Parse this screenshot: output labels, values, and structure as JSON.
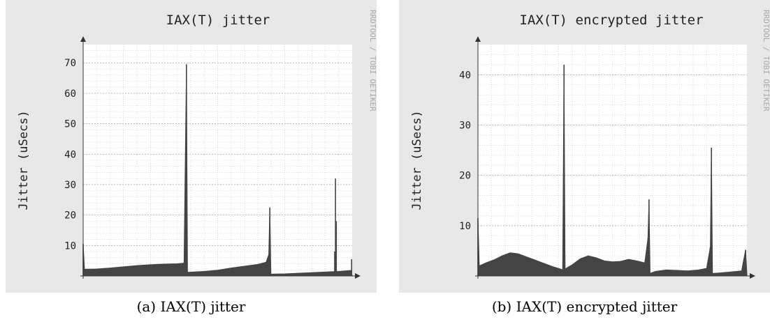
{
  "captions": [
    "(a) IAX(T) jitter",
    "(b) IAX(T) encrypted jitter"
  ],
  "watermark": "RRDTOOL / TOBI OETIKER",
  "colors": {
    "background": "#e8e8e8",
    "plot": "#ffffff",
    "grid": "#c8c8c8",
    "series": "#444444",
    "text": "#222222",
    "watermark": "#aaaaaa"
  },
  "chart_data": [
    {
      "type": "area",
      "title": "IAX(T) jitter",
      "ylabel": "Jitter (uSecs)",
      "xlabel": "",
      "ylim": [
        0,
        76
      ],
      "yticks": [
        10,
        20,
        30,
        40,
        50,
        60,
        70
      ],
      "grid": true,
      "x_range": [
        0,
        100
      ],
      "points": [
        [
          0,
          10.5
        ],
        [
          0.5,
          2.2
        ],
        [
          5,
          2.3
        ],
        [
          10,
          2.6
        ],
        [
          15,
          3.0
        ],
        [
          20,
          3.4
        ],
        [
          25,
          3.7
        ],
        [
          30,
          3.9
        ],
        [
          35,
          4.0
        ],
        [
          37.5,
          4.2
        ],
        [
          38.4,
          69.5
        ],
        [
          38.8,
          1.2
        ],
        [
          45,
          1.5
        ],
        [
          50,
          1.9
        ],
        [
          55,
          2.6
        ],
        [
          60,
          3.2
        ],
        [
          65,
          3.8
        ],
        [
          68,
          4.5
        ],
        [
          69,
          7.0
        ],
        [
          69.4,
          22.5
        ],
        [
          69.8,
          0.6
        ],
        [
          75,
          0.7
        ],
        [
          80,
          0.9
        ],
        [
          85,
          1.1
        ],
        [
          90,
          1.3
        ],
        [
          95,
          1.5
        ],
        [
          99.5,
          1.8
        ],
        [
          99.8,
          0.3
        ],
        [
          100,
          0.3
        ]
      ],
      "points_note_omitted": false,
      "spikes": [
        [
          0,
          10.5
        ],
        [
          38.4,
          69.5
        ],
        [
          69.4,
          22.5
        ],
        [
          93.8,
          32.0
        ],
        [
          94.1,
          18.0
        ],
        [
          93.5,
          8.0
        ],
        [
          99.8,
          5.5
        ]
      ]
    },
    {
      "type": "area",
      "title": "IAX(T) encrypted jitter",
      "ylabel": "Jitter (uSecs)",
      "xlabel": "",
      "ylim": [
        0,
        46
      ],
      "yticks": [
        10,
        20,
        30,
        40
      ],
      "grid": true,
      "x_range": [
        0,
        100
      ],
      "points": [
        [
          0,
          11.5
        ],
        [
          0.5,
          2.0
        ],
        [
          3,
          2.6
        ],
        [
          6,
          3.2
        ],
        [
          9,
          4.0
        ],
        [
          12,
          4.6
        ],
        [
          15,
          4.4
        ],
        [
          18,
          3.8
        ],
        [
          21,
          3.2
        ],
        [
          24,
          2.6
        ],
        [
          26,
          2.2
        ],
        [
          28,
          1.8
        ],
        [
          30,
          1.5
        ],
        [
          31.5,
          1.2
        ],
        [
          32,
          42.0
        ],
        [
          32.4,
          1.4
        ],
        [
          35,
          2.2
        ],
        [
          38,
          3.4
        ],
        [
          41,
          4.0
        ],
        [
          44,
          3.6
        ],
        [
          47,
          3.0
        ],
        [
          50,
          2.8
        ],
        [
          53,
          2.9
        ],
        [
          56,
          3.3
        ],
        [
          59,
          3.0
        ],
        [
          62,
          2.6
        ],
        [
          63.2,
          7.5
        ],
        [
          63.6,
          15.2
        ],
        [
          64,
          0.5
        ],
        [
          66,
          0.9
        ],
        [
          70,
          1.2
        ],
        [
          74,
          1.1
        ],
        [
          78,
          1.0
        ],
        [
          82,
          1.2
        ],
        [
          85,
          1.5
        ],
        [
          86.4,
          5.8
        ],
        [
          86.8,
          25.5
        ],
        [
          87.2,
          0.5
        ],
        [
          90,
          0.6
        ],
        [
          94,
          0.8
        ],
        [
          98,
          1.0
        ],
        [
          99.5,
          5.2
        ],
        [
          100,
          0.3
        ]
      ],
      "spikes": [
        [
          0,
          11.5
        ],
        [
          32,
          42.0
        ],
        [
          63.6,
          15.2
        ],
        [
          63.2,
          7.5
        ],
        [
          86.8,
          25.5
        ],
        [
          86.4,
          5.8
        ],
        [
          99.5,
          5.2
        ]
      ]
    }
  ]
}
